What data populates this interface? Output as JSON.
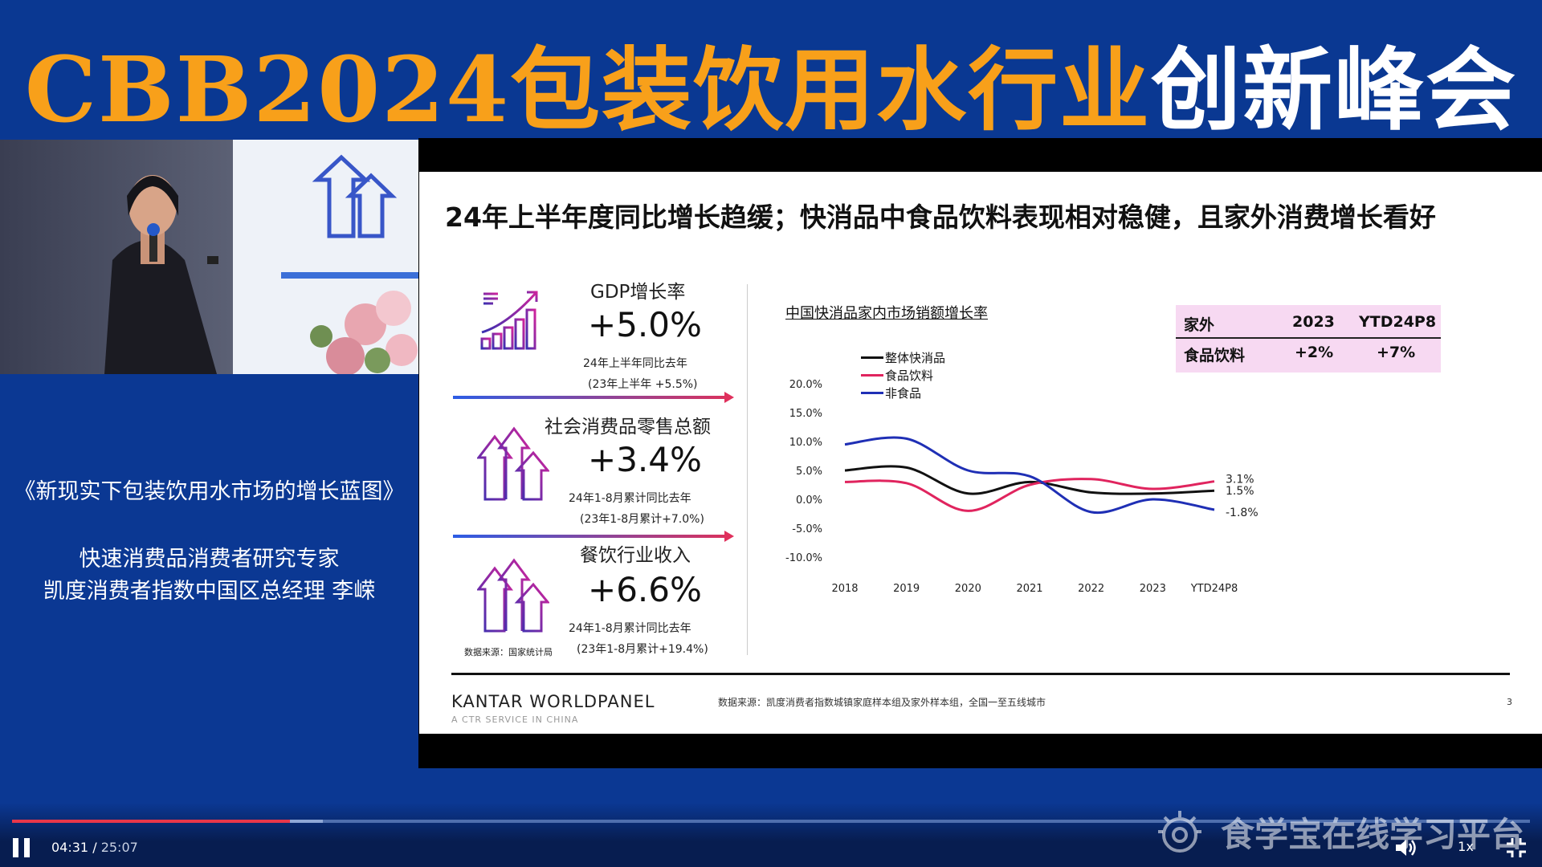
{
  "banner": {
    "title_orange": "CBB2024包装饮用水行业",
    "title_white": "创新峰会",
    "colors": {
      "orange": "#f8a01a",
      "background": "#0a3892"
    }
  },
  "speaker": {
    "talk_title": "《新现实下包装饮用水市场的增长蓝图》",
    "role": "快速消费品消费者研究专家",
    "name_line": "凯度消费者指数中国区总经理  李嵘"
  },
  "slide": {
    "heading": "24年上半年度同比增长趋缓；快消品中食品饮料表现相对稳健，且家外消费增长看好",
    "stats": [
      {
        "label": "GDP增长率",
        "value": "+5.0%",
        "sub1": "24年上半年同比去年",
        "sub2": "(23年上半年 +5.5%)",
        "icon": "bar-chart-growth-icon"
      },
      {
        "label": "社会消费品零售总额",
        "value": "+3.4%",
        "sub1": "24年1-8月累计同比去年",
        "sub2": "(23年1-8月累计+7.0%)",
        "icon": "rising-arrows-icon"
      },
      {
        "label": "餐饮行业收入",
        "value": "+6.6%",
        "sub1": "24年1-8月累计同比去年",
        "sub2": "(23年1-8月累计+19.4%)",
        "icon": "rising-arrows-icon"
      }
    ],
    "left_source": "数据来源：国家统计局",
    "table": {
      "headers": [
        "家外",
        "2023",
        "YTD24P8"
      ],
      "row": [
        "食品饮料",
        "+2%",
        "+7%"
      ]
    },
    "footer": {
      "brand": "KANTAR WORLDPANEL",
      "brand_sub": "A CTR SERVICE IN CHINA",
      "source": "数据来源：凯度消费者指数城镇家庭样本组及家外样本组，全国一至五线城市",
      "page": "3"
    }
  },
  "chart_data": {
    "type": "line",
    "title": "中国快消品家内市场销额增长率",
    "categories": [
      "2018",
      "2019",
      "2020",
      "2021",
      "2022",
      "2023",
      "YTD24P8"
    ],
    "series": [
      {
        "name": "整体快消品",
        "color": "#111111",
        "values": [
          5.0,
          5.5,
          1.0,
          3.0,
          1.2,
          1.0,
          1.5
        ]
      },
      {
        "name": "食品饮料",
        "color": "#e0245e",
        "values": [
          3.0,
          2.8,
          -2.0,
          2.5,
          3.5,
          1.8,
          3.1
        ]
      },
      {
        "name": "非食品",
        "color": "#1f2fb5",
        "values": [
          9.5,
          10.5,
          5.0,
          4.0,
          -2.2,
          0.0,
          -1.8
        ]
      }
    ],
    "end_labels": [
      "3.1%",
      "1.5%",
      "-1.8%"
    ],
    "yticks": [
      "20.0%",
      "15.0%",
      "10.0%",
      "5.0%",
      "0.0%",
      "-5.0%",
      "-10.0%"
    ],
    "ylim": [
      -10,
      20
    ],
    "legend_position": "top-left",
    "grid": false
  },
  "player": {
    "time_current": "04:31",
    "time_separator": "/",
    "time_total": "25:07",
    "progress": 0.183,
    "buffered": 0.205,
    "speed": "1x",
    "watermark": "食学宝在线学习平台",
    "colors": {
      "played": "#e8374a",
      "buffered": "#8fa8d6"
    }
  }
}
